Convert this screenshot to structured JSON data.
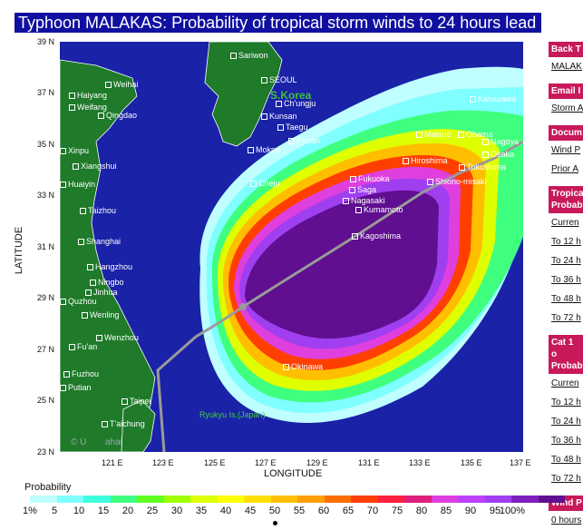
{
  "title": "Typhoon MALAKAS: Probability of tropical storm winds to 24 hours lead",
  "axes": {
    "xlabel": "LONGITUDE",
    "ylabel": "LATITUDE",
    "yticks": [
      "39 N",
      "37 N",
      "35 N",
      "33 N",
      "31 N",
      "29 N",
      "27 N",
      "25 N",
      "23 N"
    ],
    "xticks": [
      "121 E",
      "123 E",
      "125 E",
      "127 E",
      "129 E",
      "131 E",
      "133 E",
      "135 E",
      "137 E"
    ]
  },
  "map": {
    "country_labels": [
      "S.Korea"
    ],
    "region_label": "Ryukyu Is.(Japan)",
    "places": [
      "Sariwon",
      "SEOUL",
      "Weihai",
      "Haiyang",
      "Ch'ungju",
      "Weifang",
      "Qingdao",
      "Kunsan",
      "Taegu",
      "Pusan",
      "Mokpo",
      "Kanazawa",
      "Matsue",
      "Obama",
      "Nagoya",
      "Hiroshima",
      "Osaka",
      "Tokushima",
      "Shiono-misaki",
      "Xinpu",
      "Xiangshui",
      "Huaiyin",
      "Cheju",
      "Fukuoka",
      "Saga",
      "Nagasaki",
      "Kumamoto",
      "Taizhou",
      "Shanghai",
      "Kagoshima",
      "Hangzhou",
      "Ningbo",
      "Jinhua",
      "Quzhou",
      "Wenling",
      "Wenzhou",
      "Fu'an",
      "Fuzhou",
      "Putian",
      "Okinawa",
      "Taipei",
      "T'aichung"
    ],
    "copyright": "© U",
    "copyright_tail": "ahai"
  },
  "sidebar": {
    "sections": [
      {
        "heading": "Back T",
        "links": [
          "MALAK"
        ]
      },
      {
        "heading": "Email I",
        "links": [
          "Storm A"
        ]
      },
      {
        "heading": "Docum",
        "links": [
          "Wind P",
          "Prior A"
        ]
      },
      {
        "heading": "Tropica Probab",
        "links": [
          "Curren",
          "To 12 h",
          "To 24 h",
          "To 36 h",
          "To 48 h",
          "To 72 h"
        ]
      },
      {
        "heading": "Cat 1 o Probab",
        "links": [
          "Curren",
          "To 12 h",
          "To 24 h",
          "To 36 h",
          "To 48 h",
          "To 72 h"
        ]
      },
      {
        "heading": "Wind P",
        "links": [
          "0 hours"
        ]
      }
    ]
  },
  "legend": {
    "title": "Probability",
    "labels": [
      "1%",
      "5",
      "10",
      "15",
      "20",
      "25",
      "30",
      "35",
      "40",
      "45",
      "50",
      "55",
      "60",
      "65",
      "70",
      "75",
      "80",
      "85",
      "90",
      "95",
      "100%"
    ],
    "colors": [
      "#bfffff",
      "#7fffff",
      "#3fffdf",
      "#3fff7f",
      "#5fff1f",
      "#9fff00",
      "#dfff00",
      "#ffff00",
      "#ffdf00",
      "#ffbf00",
      "#ff9f00",
      "#ff6f00",
      "#ff3f00",
      "#ff1f3f",
      "#df1f7f",
      "#df3fdf",
      "#bf3fff",
      "#9f3fef",
      "#7f1fbf",
      "#5f0f8f"
    ]
  }
}
